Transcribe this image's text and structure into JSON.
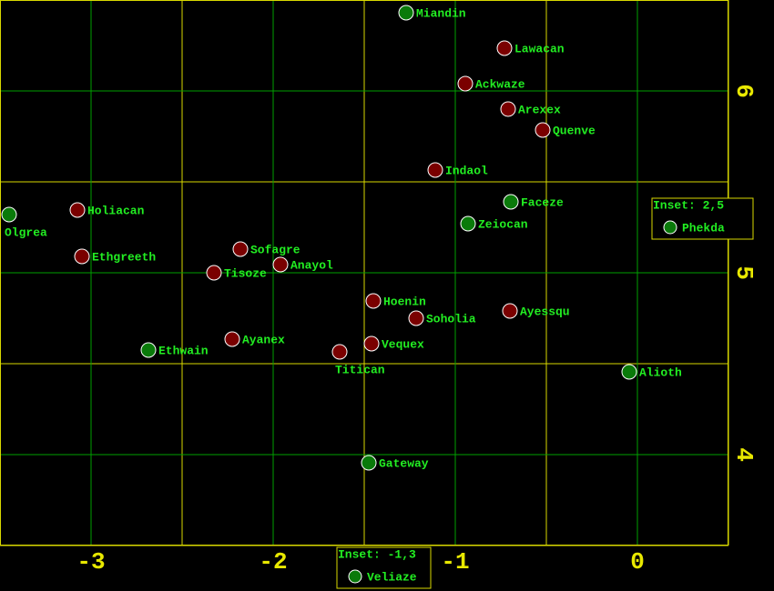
{
  "map": {
    "xlim": [
      -3.5,
      0.5
    ],
    "ylim": [
      3.5,
      6.5
    ],
    "xticks": [
      -3,
      -2,
      -1,
      0
    ],
    "yticks": [
      4,
      5,
      6
    ],
    "major_grid_color": "#00a000",
    "minor_grid_color": "#d8d800",
    "systems": [
      {
        "name": "Miandin",
        "x": -1.27,
        "y": 6.43,
        "color": "#0a7a0a"
      },
      {
        "name": "Lawacan",
        "x": -0.73,
        "y": 6.235,
        "color": "#7a0000"
      },
      {
        "name": "Ackwaze",
        "x": -0.945,
        "y": 6.04,
        "color": "#7a0000"
      },
      {
        "name": "Arexex",
        "x": -0.71,
        "y": 5.9,
        "color": "#7a0000"
      },
      {
        "name": "Quenve",
        "x": -0.52,
        "y": 5.785,
        "color": "#7a0000"
      },
      {
        "name": "Indaol",
        "x": -1.11,
        "y": 5.565,
        "color": "#7a0000"
      },
      {
        "name": "Faceze",
        "x": -0.695,
        "y": 5.39,
        "color": "#0a7a0a"
      },
      {
        "name": "Zeiocan",
        "x": -0.93,
        "y": 5.27,
        "color": "#0a7a0a"
      },
      {
        "name": "Olgrea",
        "x": -3.45,
        "y": 5.32,
        "color": "#0a7a0a"
      },
      {
        "name": "Holiacan",
        "x": -3.075,
        "y": 5.345,
        "color": "#7a0000"
      },
      {
        "name": "Ethgreeth",
        "x": -3.05,
        "y": 5.09,
        "color": "#7a0000"
      },
      {
        "name": "Sofagre",
        "x": -2.18,
        "y": 5.13,
        "color": "#7a0000"
      },
      {
        "name": "Anayol",
        "x": -1.96,
        "y": 5.045,
        "color": "#7a0000"
      },
      {
        "name": "Tisoze",
        "x": -2.325,
        "y": 5.0,
        "color": "#7a0000"
      },
      {
        "name": "Hoenin",
        "x": -1.45,
        "y": 4.845,
        "color": "#7a0000"
      },
      {
        "name": "Soholia",
        "x": -1.215,
        "y": 4.75,
        "color": "#7a0000"
      },
      {
        "name": "Ayessqu",
        "x": -0.7,
        "y": 4.79,
        "color": "#7a0000"
      },
      {
        "name": "Ayanex",
        "x": -2.225,
        "y": 4.635,
        "color": "#7a0000"
      },
      {
        "name": "Vequex",
        "x": -1.46,
        "y": 4.61,
        "color": "#7a0000"
      },
      {
        "name": "Titican",
        "x": -1.635,
        "y": 4.565,
        "color": "#7a0000"
      },
      {
        "name": "Ethwain",
        "x": -2.685,
        "y": 4.575,
        "color": "#0a7a0a"
      },
      {
        "name": "Alioth",
        "x": -0.045,
        "y": 4.455,
        "color": "#0a7a0a"
      },
      {
        "name": "Gateway",
        "x": -1.475,
        "y": 3.955,
        "color": "#0a7a0a"
      }
    ],
    "insets": [
      {
        "label": "Inset: 2,5",
        "name": "Phekda",
        "color": "#0a7a0a"
      },
      {
        "label": "Inset: -1,3",
        "name": "Veliaze",
        "color": "#0a7a0a"
      }
    ]
  }
}
